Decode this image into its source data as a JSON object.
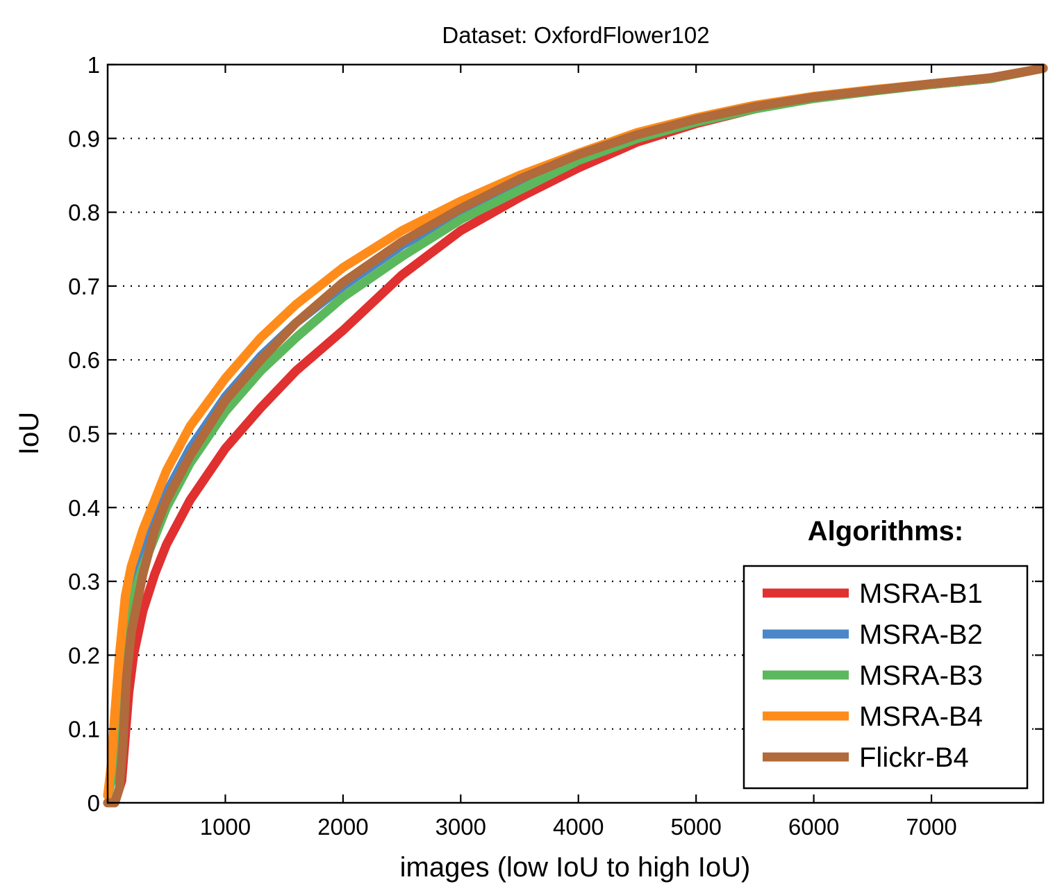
{
  "chart_data": {
    "type": "line",
    "title": "Dataset: OxfordFlower102",
    "xlabel": "images (low IoU to high IoU)",
    "ylabel": "IoU",
    "xlim": [
      0,
      7950
    ],
    "ylim": [
      0,
      1
    ],
    "xticks": [
      1000,
      2000,
      3000,
      4000,
      5000,
      6000,
      7000
    ],
    "yticks": [
      0,
      0.1,
      0.2,
      0.3,
      0.4,
      0.5,
      0.6,
      0.7,
      0.8,
      0.9,
      1
    ],
    "ytick_labels": [
      "0",
      "0.1",
      "0.2",
      "0.3",
      "0.4",
      "0.5",
      "0.6",
      "0.7",
      "0.8",
      "0.9",
      "1"
    ],
    "grid": "horizontal-dotted",
    "legend_title": "Algorithms:",
    "legend_position": "bottom-right",
    "series": [
      {
        "name": "MSRA-B1",
        "color": "#e03030",
        "x": [
          0,
          60,
          120,
          150,
          180,
          220,
          300,
          400,
          500,
          700,
          1000,
          1300,
          1600,
          2000,
          2500,
          3000,
          3500,
          4000,
          4500,
          5000,
          5500,
          6000,
          6500,
          7000,
          7500,
          7950
        ],
        "y": [
          0,
          0.0,
          0.03,
          0.09,
          0.15,
          0.2,
          0.26,
          0.31,
          0.35,
          0.41,
          0.48,
          0.535,
          0.585,
          0.64,
          0.715,
          0.775,
          0.82,
          0.86,
          0.895,
          0.92,
          0.94,
          0.955,
          0.965,
          0.973,
          0.981,
          0.995
        ]
      },
      {
        "name": "MSRA-B2",
        "color": "#4a86c8",
        "x": [
          0,
          30,
          60,
          100,
          150,
          200,
          300,
          400,
          500,
          700,
          1000,
          1300,
          1600,
          2000,
          2500,
          3000,
          3500,
          4000,
          4500,
          5000,
          5500,
          6000,
          6500,
          7000,
          7500,
          7950
        ],
        "y": [
          0.01,
          0.03,
          0.07,
          0.15,
          0.25,
          0.29,
          0.34,
          0.38,
          0.42,
          0.48,
          0.55,
          0.605,
          0.65,
          0.7,
          0.755,
          0.8,
          0.84,
          0.875,
          0.905,
          0.925,
          0.942,
          0.955,
          0.965,
          0.973,
          0.981,
          0.995
        ]
      },
      {
        "name": "MSRA-B3",
        "color": "#5cb85c",
        "x": [
          0,
          30,
          60,
          100,
          150,
          200,
          300,
          400,
          500,
          700,
          1000,
          1300,
          1600,
          2000,
          2500,
          3000,
          3500,
          4000,
          4500,
          5000,
          5500,
          6000,
          6500,
          7000,
          7500,
          7950
        ],
        "y": [
          0.01,
          0.03,
          0.06,
          0.14,
          0.23,
          0.27,
          0.32,
          0.36,
          0.4,
          0.46,
          0.53,
          0.585,
          0.63,
          0.685,
          0.74,
          0.79,
          0.83,
          0.87,
          0.9,
          0.922,
          0.94,
          0.954,
          0.964,
          0.973,
          0.981,
          0.995
        ]
      },
      {
        "name": "MSRA-B4",
        "color": "#ff8c1a",
        "x": [
          0,
          30,
          60,
          100,
          150,
          200,
          300,
          400,
          500,
          700,
          1000,
          1300,
          1600,
          2000,
          2500,
          3000,
          3500,
          4000,
          4500,
          5000,
          5500,
          6000,
          6500,
          7000,
          7500,
          7950
        ],
        "y": [
          0.01,
          0.05,
          0.12,
          0.2,
          0.28,
          0.32,
          0.37,
          0.41,
          0.45,
          0.51,
          0.575,
          0.63,
          0.675,
          0.725,
          0.775,
          0.815,
          0.85,
          0.88,
          0.908,
          0.928,
          0.945,
          0.957,
          0.966,
          0.974,
          0.982,
          0.995
        ]
      },
      {
        "name": "Flickr-B4",
        "color": "#b06a3b",
        "x": [
          0,
          60,
          100,
          130,
          160,
          200,
          300,
          400,
          500,
          700,
          1000,
          1300,
          1600,
          2000,
          2500,
          3000,
          3500,
          4000,
          4500,
          5000,
          5500,
          6000,
          6500,
          7000,
          7500,
          7950
        ],
        "y": [
          0,
          0.0,
          0.02,
          0.08,
          0.17,
          0.23,
          0.31,
          0.37,
          0.41,
          0.47,
          0.545,
          0.6,
          0.65,
          0.705,
          0.76,
          0.805,
          0.845,
          0.878,
          0.905,
          0.926,
          0.943,
          0.956,
          0.965,
          0.974,
          0.982,
          0.995
        ]
      }
    ]
  }
}
